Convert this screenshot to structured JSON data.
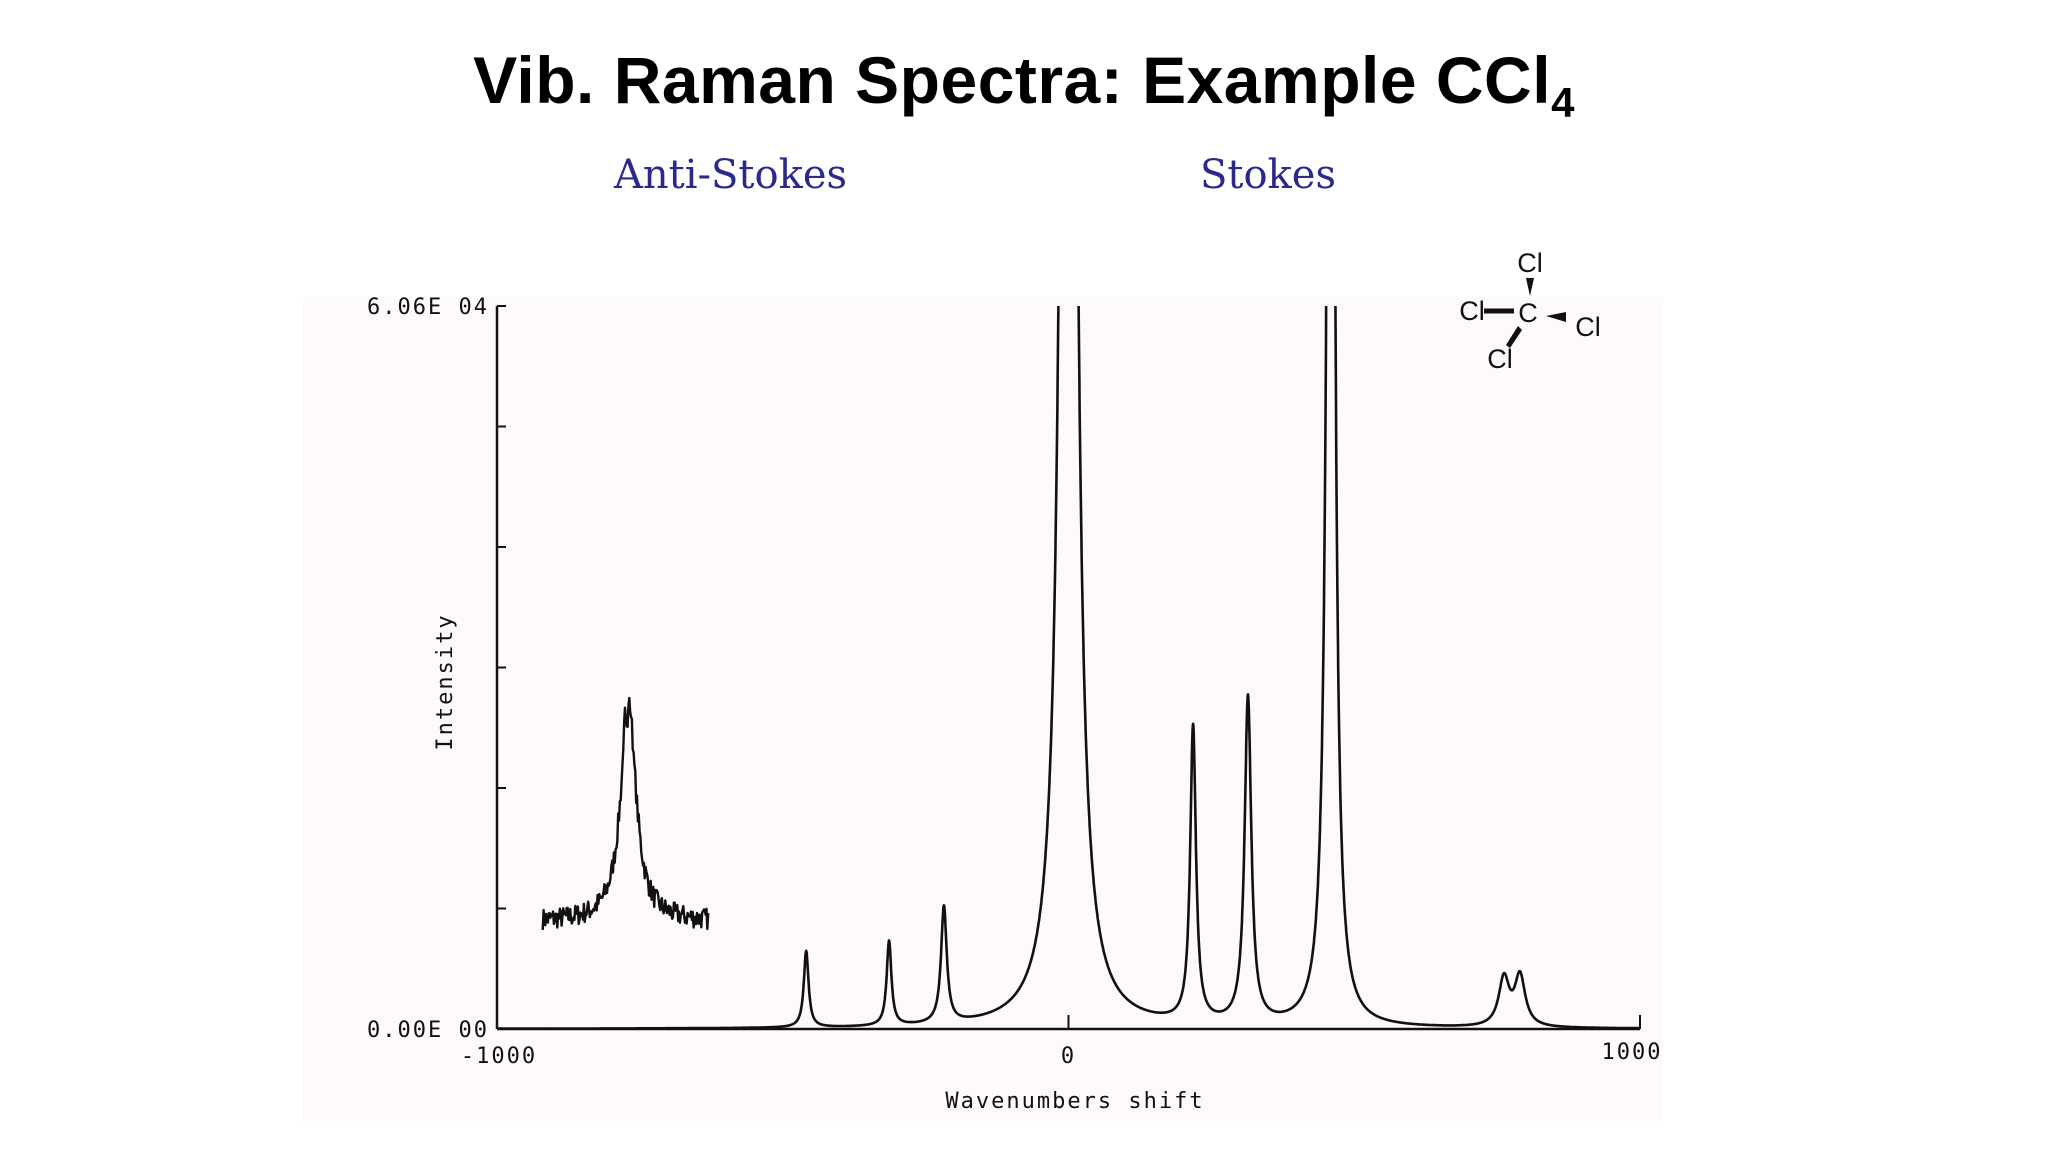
{
  "slide": {
    "title_main": "Vib. Raman Spectra: Example CCl",
    "title_subscript": "4",
    "anti_stokes_label": "Anti-Stokes",
    "stokes_label": "Stokes"
  },
  "molecule": {
    "central_atom": "C",
    "ligands": [
      "Cl",
      "Cl",
      "Cl",
      "Cl"
    ]
  },
  "chart_data": {
    "type": "line",
    "xlabel": "Wavenumbers shift",
    "ylabel": "Intensity",
    "xlim": [
      -1000,
      1000
    ],
    "ylim": [
      0,
      60600
    ],
    "x_tick_labels": [
      "-1000",
      "0",
      "1000"
    ],
    "y_tick_labels": [
      "0.00E 00",
      "6.06E 04"
    ],
    "grid": false,
    "line_color": "#111111",
    "peaks": [
      {
        "center": -459,
        "height": 6400,
        "width": 5
      },
      {
        "center": -314,
        "height": 7100,
        "width": 5
      },
      {
        "center": -218,
        "height": 9800,
        "width": 6
      },
      {
        "center": 0,
        "height": 250000,
        "width": 10
      },
      {
        "center": 218,
        "height": 24800,
        "width": 6
      },
      {
        "center": 314,
        "height": 27400,
        "width": 7
      },
      {
        "center": 459,
        "height": 170000,
        "width": 6
      },
      {
        "center": 445,
        "height": 1500,
        "width": 8
      },
      {
        "center": 762,
        "height": 4000,
        "width": 11
      },
      {
        "center": 790,
        "height": 4200,
        "width": 11
      }
    ],
    "inset_peak": {
      "x_range": [
        -920,
        -630
      ],
      "baseline": 9000,
      "center": -770,
      "height": 18500,
      "width": 16,
      "noise": 900
    }
  }
}
